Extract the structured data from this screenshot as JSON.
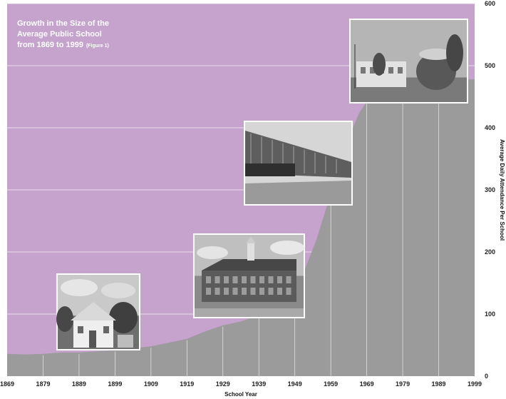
{
  "colors": {
    "plot_background": "#c5a3cd",
    "area_fill": "#9b9b9b",
    "gridline": "#ffffff",
    "photo_frame": "#ffffff"
  },
  "chart_data": {
    "type": "area",
    "title_lines": [
      "Growth in the Size of the",
      "Average Public School",
      "from 1869 to 1999"
    ],
    "title_note": "(Figure 1)",
    "xlabel": "School Year",
    "ylabel": "Average Daily Attendance Per School",
    "ylim": [
      0,
      600
    ],
    "y_ticks": [
      0,
      100,
      200,
      300,
      400,
      500,
      600
    ],
    "y_axis_position": "right",
    "x_ticks": [
      "1869",
      "1879",
      "1889",
      "1899",
      "1909",
      "1919",
      "1929",
      "1939",
      "1949",
      "1959",
      "1969",
      "1979",
      "1989",
      "1999"
    ],
    "grid": true,
    "series": [
      {
        "x": [
          1869,
          1874,
          1879,
          1884,
          1889,
          1894,
          1899,
          1904,
          1909,
          1914,
          1919,
          1924,
          1929,
          1934,
          1939,
          1944,
          1949,
          1952,
          1955,
          1958,
          1961,
          1964,
          1967,
          1969,
          1974,
          1979,
          1984,
          1989,
          1994,
          1999
        ],
        "values": [
          36,
          35,
          36,
          38,
          38,
          40,
          42,
          45,
          48,
          54,
          60,
          72,
          82,
          88,
          98,
          112,
          140,
          175,
          220,
          275,
          330,
          385,
          425,
          442,
          448,
          442,
          458,
          462,
          478,
          478
        ]
      }
    ],
    "photos": [
      {
        "description": "one-room schoolhouse",
        "anchor_year": 1897
      },
      {
        "description": "brick school building with cupola",
        "anchor_year": 1940
      },
      {
        "description": "modern flat-roofed school",
        "anchor_year": 1953
      },
      {
        "description": "contemporary school with round tower",
        "anchor_year": 1983
      }
    ]
  }
}
